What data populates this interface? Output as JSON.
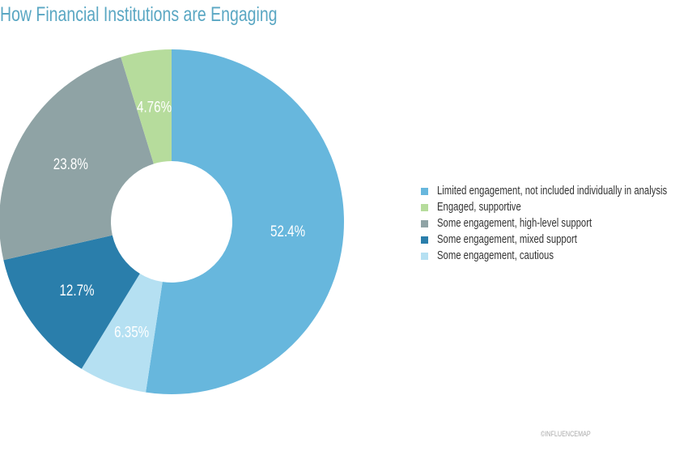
{
  "chart_data": {
    "type": "pie",
    "donut": true,
    "title": "How Financial Institutions are Engaging",
    "slices": [
      {
        "name": "Limited engagement, not included individually in analysis",
        "value": 52.4,
        "label": "52.4%",
        "color": "#67b7dd"
      },
      {
        "name": "Engaged, supportive",
        "value": 4.76,
        "label": "4.76%",
        "color": "#b6dc9c"
      },
      {
        "name": "Some engagement, high-level support",
        "value": 23.8,
        "label": "23.8%",
        "color": "#8fa3a5"
      },
      {
        "name": "Some engagement, mixed support",
        "value": 12.7,
        "label": "12.7%",
        "color": "#2a7eab"
      },
      {
        "name": "Some engagement, cautious",
        "value": 6.35,
        "label": "6.35%",
        "color": "#b5e0f2"
      }
    ],
    "clockwise_order_from_top": [
      0,
      4,
      3,
      2,
      1
    ],
    "legend_position": "right"
  },
  "watermark": "©INFLUENCEMAP"
}
